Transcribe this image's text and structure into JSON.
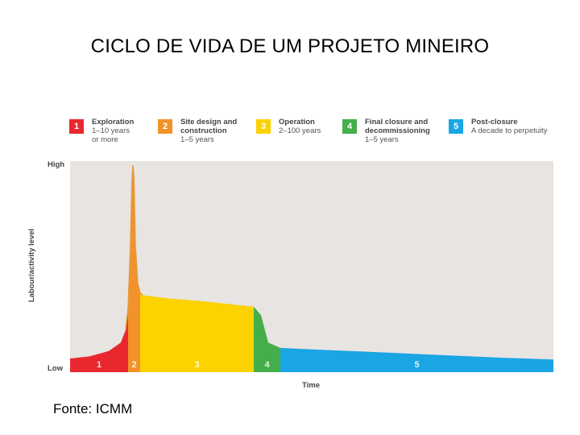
{
  "page_title": "CICLO DE VIDA DE UM PROJETO MINEIRO",
  "source": "Fonte: ICMM",
  "colors": {
    "plot_bg": "#e8e4e2",
    "phase1": "#e8282e",
    "phase2": "#f2922a",
    "phase3": "#fcd200",
    "phase4": "#44ae4a",
    "phase5": "#1aa5e4",
    "curve_top": "#e49a3c"
  },
  "legend": [
    {
      "num": "1",
      "title": "Exploration",
      "sub1": "1–10 years",
      "sub2": "or more",
      "color": "#e8282e"
    },
    {
      "num": "2",
      "title": "Site design and",
      "sub1": "construction",
      "sub2": "1–5 years",
      "color": "#f2922a"
    },
    {
      "num": "3",
      "title": "Operation",
      "sub1": "2–100 years",
      "sub2": "",
      "color": "#fcd200"
    },
    {
      "num": "4",
      "title": "Final closure and",
      "sub1": "decommissioning",
      "sub2": "1–5 years",
      "color": "#44ae4a"
    },
    {
      "num": "5",
      "title": "Post-closure",
      "sub1": "A decade to perpetuity",
      "sub2": "",
      "color": "#1aa5e4"
    }
  ],
  "chart_data": {
    "type": "area",
    "title": "",
    "xlabel": "Time",
    "ylabel": "Labour/activity level",
    "y_ticks": [
      "Low",
      "High"
    ],
    "x_range": [
      0,
      100
    ],
    "y_range": [
      0,
      100
    ],
    "phases": [
      {
        "label": "1",
        "x_start": 0,
        "x_end": 12,
        "color": "#e8282e"
      },
      {
        "label": "2",
        "x_start": 12,
        "x_end": 14.5,
        "color": "#f2922a"
      },
      {
        "label": "3",
        "x_start": 14.5,
        "x_end": 38,
        "color": "#fcd200"
      },
      {
        "label": "4",
        "x_start": 38,
        "x_end": 43.5,
        "color": "#44ae4a"
      },
      {
        "label": "5",
        "x_start": 43.5,
        "x_end": 100,
        "color": "#1aa5e4"
      }
    ],
    "curve": {
      "x": [
        0,
        4,
        8,
        10.5,
        11.5,
        12,
        12.5,
        12.8,
        13,
        13.2,
        13.5,
        14,
        14.5,
        15,
        20,
        28,
        36,
        38,
        39.5,
        41,
        43.5,
        50,
        60,
        70,
        80,
        90,
        100
      ],
      "y": [
        6.5,
        7.5,
        10,
        14,
        20,
        30,
        60,
        90,
        98,
        92,
        60,
        42,
        37.5,
        36.5,
        35,
        33.5,
        31.5,
        31,
        27,
        14,
        11.5,
        10.8,
        9.8,
        8.8,
        7.8,
        6.8,
        6
      ]
    }
  }
}
